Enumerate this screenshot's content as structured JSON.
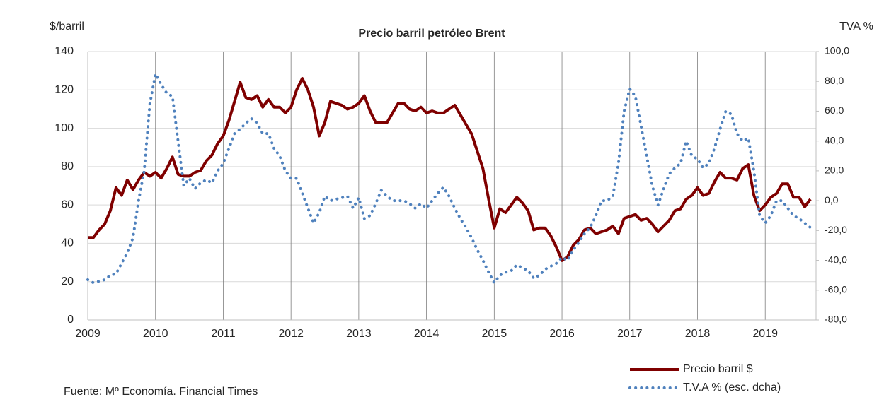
{
  "chart_data": {
    "type": "line",
    "title": "Precio barril petróleo Brent",
    "ylabel": "$/barril",
    "y2label": "TVA %",
    "source": "Fuente: Mº Economía. Financial Times",
    "x": [
      2009,
      2009.083,
      2009.167,
      2009.25,
      2009.333,
      2009.417,
      2009.5,
      2009.583,
      2009.667,
      2009.75,
      2009.833,
      2009.917,
      2010,
      2010.083,
      2010.167,
      2010.25,
      2010.333,
      2010.417,
      2010.5,
      2010.583,
      2010.667,
      2010.75,
      2010.833,
      2010.917,
      2011,
      2011.083,
      2011.167,
      2011.25,
      2011.333,
      2011.417,
      2011.5,
      2011.583,
      2011.667,
      2011.75,
      2011.833,
      2011.917,
      2012,
      2012.083,
      2012.167,
      2012.25,
      2012.333,
      2012.417,
      2012.5,
      2012.583,
      2012.667,
      2012.75,
      2012.833,
      2012.917,
      2013,
      2013.083,
      2013.167,
      2013.25,
      2013.333,
      2013.417,
      2013.5,
      2013.583,
      2013.667,
      2013.75,
      2013.833,
      2013.917,
      2014,
      2014.083,
      2014.167,
      2014.25,
      2014.333,
      2014.417,
      2014.5,
      2014.583,
      2014.667,
      2014.75,
      2014.833,
      2014.917,
      2015,
      2015.083,
      2015.167,
      2015.25,
      2015.333,
      2015.417,
      2015.5,
      2015.583,
      2015.667,
      2015.75,
      2015.833,
      2015.917,
      2016,
      2016.083,
      2016.167,
      2016.25,
      2016.333,
      2016.417,
      2016.5,
      2016.583,
      2016.667,
      2016.75,
      2016.833,
      2016.917,
      2017,
      2017.083,
      2017.167,
      2017.25,
      2017.333,
      2017.417,
      2017.5,
      2017.583,
      2017.667,
      2017.75,
      2017.833,
      2017.917,
      2018,
      2018.083,
      2018.167,
      2018.25,
      2018.333,
      2018.417,
      2018.5,
      2018.583,
      2018.667,
      2018.75,
      2018.833,
      2018.917,
      2019,
      2019.083,
      2019.167,
      2019.25,
      2019.333,
      2019.417,
      2019.5,
      2019.583,
      2019.667
    ],
    "series": [
      {
        "name": "Precio barril $",
        "color": "#7f0000",
        "style": "solid",
        "axis": "y",
        "values": [
          43,
          43,
          47,
          50,
          57,
          69,
          65,
          73,
          68,
          73,
          77,
          75,
          77,
          74,
          79,
          85,
          76,
          75,
          75,
          77,
          78,
          83,
          86,
          92,
          96,
          104,
          114,
          124,
          116,
          115,
          117,
          111,
          115,
          111,
          111,
          108,
          111,
          120,
          126,
          120,
          111,
          96,
          103,
          114,
          113,
          112,
          110,
          111,
          113,
          117,
          109,
          103,
          103,
          103,
          108,
          113,
          113,
          110,
          109,
          111,
          108,
          109,
          108,
          108,
          110,
          112,
          107,
          102,
          97,
          88,
          79,
          63,
          48,
          58,
          56,
          60,
          64,
          61,
          57,
          47,
          48,
          48,
          44,
          38,
          31,
          33,
          39,
          42,
          47,
          48,
          45,
          46,
          47,
          49,
          45,
          53,
          54,
          55,
          52,
          53,
          50,
          46,
          49,
          52,
          57,
          58,
          63,
          65,
          69,
          65,
          66,
          72,
          77,
          74,
          74,
          73,
          79,
          81,
          65,
          57,
          60,
          64,
          66,
          71,
          71,
          64,
          64,
          59,
          63
        ]
      },
      {
        "name": "T.V.A % (esc. dcha)",
        "color": "#4f81bd",
        "style": "dotted",
        "axis": "y2",
        "values": [
          -53,
          -55,
          -54,
          -53,
          -50,
          -49,
          -42,
          -35,
          -25,
          0,
          20,
          65,
          85,
          78,
          72,
          70,
          40,
          10,
          15,
          8,
          12,
          14,
          12,
          20,
          25,
          35,
          45,
          48,
          52,
          55,
          52,
          45,
          45,
          35,
          30,
          20,
          15,
          15,
          5,
          -5,
          -15,
          -8,
          3,
          0,
          1,
          2,
          3,
          -5,
          2,
          -12,
          -10,
          -2,
          7,
          3,
          0,
          0,
          0,
          -2,
          -5,
          -2,
          -5,
          0,
          5,
          9,
          3,
          -5,
          -12,
          -18,
          -25,
          -33,
          -40,
          -48,
          -55,
          -50,
          -48,
          -47,
          -43,
          -45,
          -47,
          -52,
          -50,
          -46,
          -44,
          -42,
          -38,
          -40,
          -33,
          -28,
          -22,
          -18,
          -10,
          0,
          0,
          3,
          25,
          60,
          75,
          70,
          50,
          30,
          10,
          -3,
          8,
          18,
          22,
          25,
          40,
          30,
          28,
          22,
          25,
          35,
          48,
          60,
          58,
          45,
          40,
          42,
          20,
          -10,
          -15,
          -10,
          0,
          0,
          -5,
          -10,
          -12,
          -15,
          -18
        ]
      }
    ],
    "xlim": [
      2009,
      2019.75
    ],
    "xticks": [
      2009,
      2010,
      2011,
      2012,
      2013,
      2014,
      2015,
      2016,
      2017,
      2018,
      2019
    ],
    "ylim": [
      0,
      140
    ],
    "yticks": [
      0,
      20,
      40,
      60,
      80,
      100,
      120,
      140
    ],
    "y2lim": [
      -80,
      100
    ],
    "y2ticks": [
      {
        "value": 100,
        "label": "100,0"
      },
      {
        "value": 80,
        "label": "80,0"
      },
      {
        "value": 60,
        "label": "60,0"
      },
      {
        "value": 40,
        "label": "40,0"
      },
      {
        "value": 20,
        "label": "20,0"
      },
      {
        "value": 0,
        "label": "0,0"
      },
      {
        "value": -20,
        "label": "-20,0"
      },
      {
        "value": -40,
        "label": "-40,0"
      },
      {
        "value": -60,
        "label": "-60,0"
      },
      {
        "value": -80,
        "label": "-80,0"
      }
    ],
    "grid": true,
    "legend": "bottom-right"
  }
}
